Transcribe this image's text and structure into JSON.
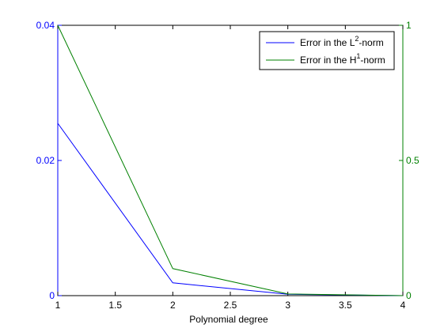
{
  "chart_data": {
    "type": "line",
    "xlabel": "Polynomial degree",
    "xlim": [
      1,
      4
    ],
    "x_ticks": [
      "1",
      "1.5",
      "2",
      "2.5",
      "3",
      "3.5",
      "4"
    ],
    "left_axis": {
      "ylim": [
        0,
        0.04
      ],
      "ticks": [
        "0",
        "0.02",
        "0.04"
      ],
      "color": "#0000ff"
    },
    "right_axis": {
      "ylim": [
        0,
        1
      ],
      "ticks": [
        "0",
        "0.5",
        "1"
      ],
      "color": "#008000"
    },
    "series": [
      {
        "name": "Error in the L²-norm",
        "legend_base": "Error in the L",
        "legend_sup": "2",
        "legend_tail": "-norm",
        "axis": "left",
        "color": "#0000ff",
        "x": [
          1,
          2,
          3,
          4
        ],
        "y": [
          0.0255,
          0.0019,
          0.0002,
          0.0
        ]
      },
      {
        "name": "Error in the H¹-norm",
        "legend_base": "Error in the H",
        "legend_sup": "1",
        "legend_tail": "-norm",
        "axis": "right",
        "color": "#008000",
        "x": [
          1,
          2,
          3,
          4
        ],
        "y": [
          1.0,
          0.1,
          0.006,
          0.0
        ]
      }
    ],
    "legend_position": "top-right",
    "grid": false
  }
}
